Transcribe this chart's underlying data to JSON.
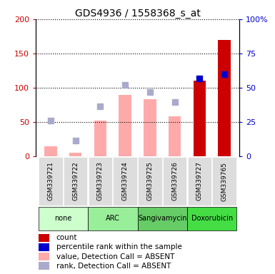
{
  "title": "GDS4936 / 1558368_s_at",
  "samples": [
    "GSM339721",
    "GSM339722",
    "GSM339723",
    "GSM339724",
    "GSM339725",
    "GSM339726",
    "GSM339727",
    "GSM339765"
  ],
  "agent_groups": [
    {
      "label": "none",
      "samples": [
        0,
        1
      ],
      "color": "#ccffcc"
    },
    {
      "label": "ARC",
      "samples": [
        2,
        3
      ],
      "color": "#99ee99"
    },
    {
      "label": "Sangivamycin",
      "samples": [
        4,
        5
      ],
      "color": "#66cc66"
    },
    {
      "label": "Doxorubicin",
      "samples": [
        6,
        7
      ],
      "color": "#44dd44"
    }
  ],
  "count_values": [
    0,
    0,
    0,
    0,
    0,
    0,
    110,
    170
  ],
  "count_color": "#cc0000",
  "value_absent": [
    15,
    5,
    52,
    90,
    83,
    58,
    0,
    0
  ],
  "value_absent_color": "#ffaaaa",
  "rank_absent": [
    52,
    23,
    73,
    104,
    94,
    79,
    0,
    0
  ],
  "rank_absent_color": "#aaaacc",
  "percentile_rank": [
    0,
    0,
    0,
    0,
    0,
    0,
    57,
    60
  ],
  "percentile_rank_color": "#0000cc",
  "ylim_left": [
    0,
    200
  ],
  "ylim_right": [
    0,
    100
  ],
  "yticks_left": [
    0,
    50,
    100,
    150,
    200
  ],
  "ytick_labels_left": [
    "0",
    "50",
    "100",
    "150",
    "200"
  ],
  "yticks_right": [
    0,
    25,
    50,
    75,
    100
  ],
  "ytick_labels_right": [
    "0",
    "25",
    "50",
    "75",
    "100%"
  ],
  "bar_width": 0.5,
  "marker_size": 6,
  "sample_box_color": "#dddddd",
  "legend_items": [
    {
      "label": "count",
      "color": "#cc0000",
      "marker": "s"
    },
    {
      "label": "percentile rank within the sample",
      "color": "#0000cc",
      "marker": "s"
    },
    {
      "label": "value, Detection Call = ABSENT",
      "color": "#ffaaaa",
      "marker": "s"
    },
    {
      "label": "rank, Detection Call = ABSENT",
      "color": "#aaaacc",
      "marker": "s"
    }
  ]
}
